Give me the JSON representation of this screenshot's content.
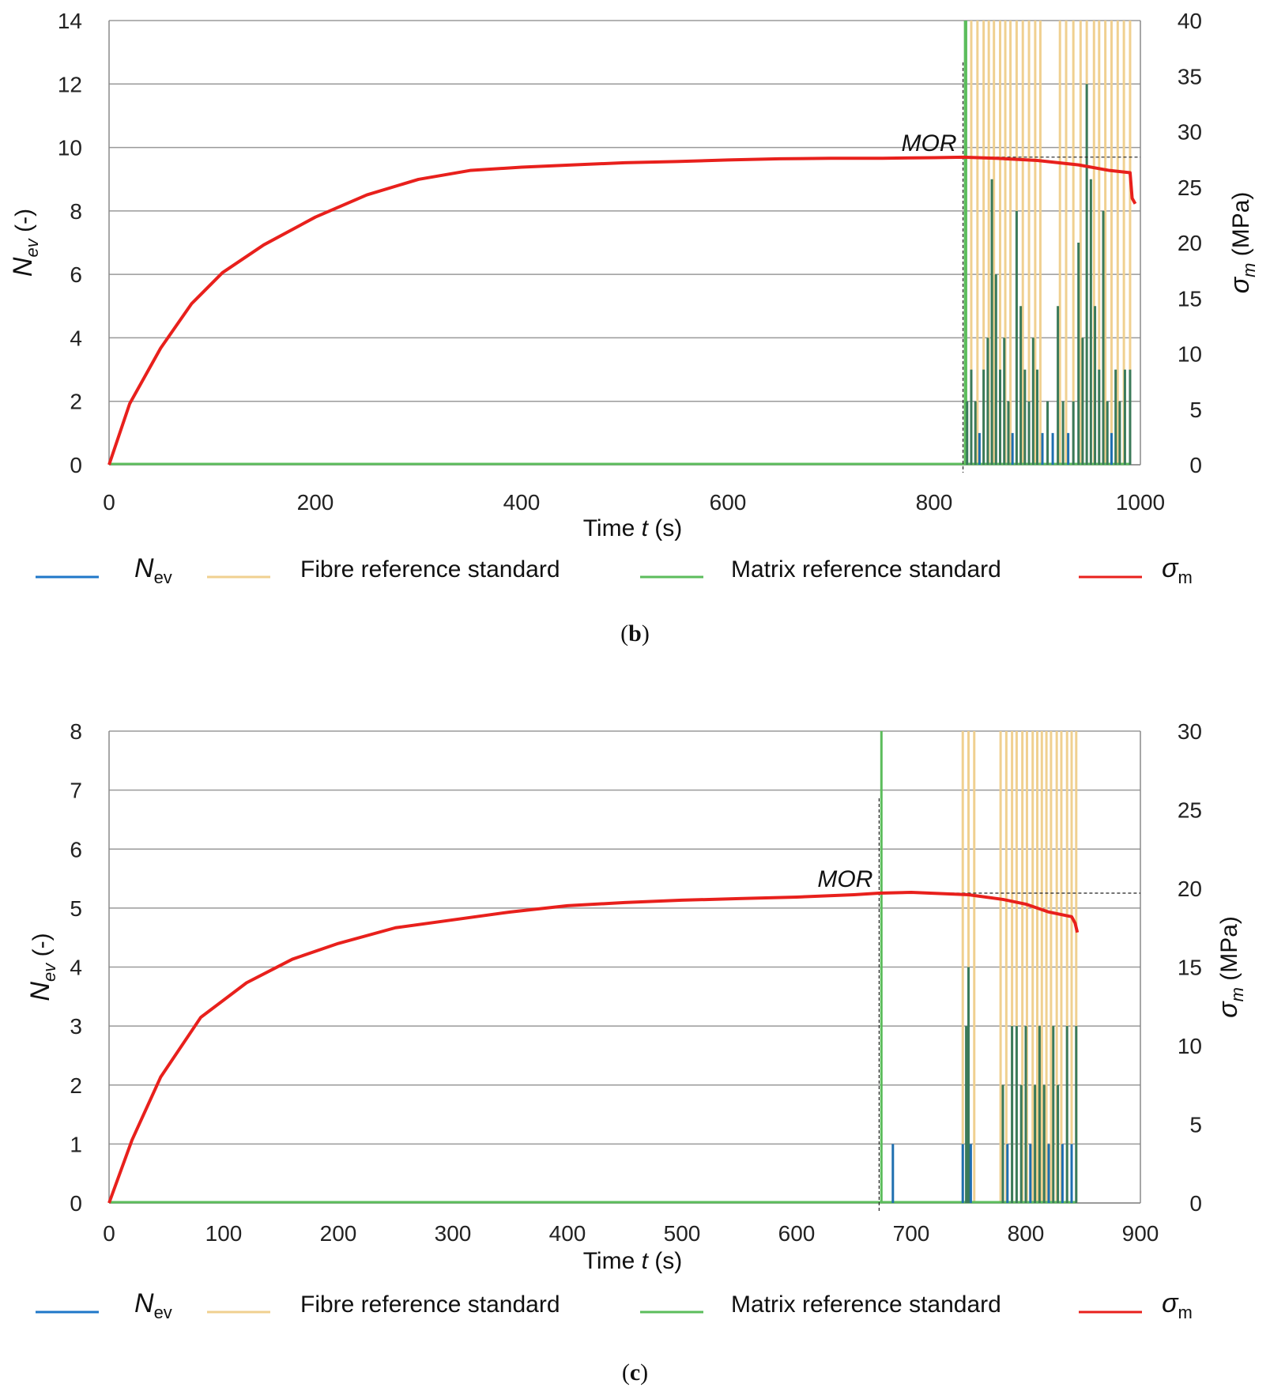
{
  "charts": [
    {
      "id": "b",
      "caption_letter": "b",
      "chart_data": {
        "type": "line",
        "xlabel_prefix": "Time ",
        "xlabel_var": "t",
        "xlabel_suffix": " (s)",
        "ylabel_var": "N",
        "ylabel_sub": "ev",
        "ylabel_suffix": " (-)",
        "y2label_var": "σ",
        "y2label_sub": "m",
        "y2label_suffix": " (MPa)",
        "xlim": [
          0,
          1000
        ],
        "ylim": [
          0,
          14
        ],
        "y2lim": [
          0,
          40
        ],
        "xticks": [
          "0",
          "200",
          "400",
          "600",
          "800",
          "1000"
        ],
        "xtick_values": [
          0,
          200,
          400,
          600,
          800,
          1000
        ],
        "yticks": [
          "0",
          "2",
          "4",
          "6",
          "8",
          "10",
          "12",
          "14"
        ],
        "ytick_values": [
          0,
          2,
          4,
          6,
          8,
          10,
          12,
          14
        ],
        "y2ticks": [
          "0",
          "5",
          "10",
          "15",
          "20",
          "25",
          "30",
          "35",
          "40"
        ],
        "y2tick_values": [
          0,
          5,
          10,
          15,
          20,
          25,
          30,
          35,
          40
        ],
        "grid": true,
        "annotation": {
          "text": "MOR",
          "x": 828,
          "y2": 27.7
        },
        "legend": [
          {
            "label_var": "N",
            "label_sub": "ev",
            "label_text": "",
            "color": "#1f77c8"
          },
          {
            "label_var": "",
            "label_sub": "",
            "label_text": "Fibre reference standard",
            "color": "#f0d090"
          },
          {
            "label_var": "",
            "label_sub": "",
            "label_text": "Matrix reference standard",
            "color": "#5cbd5c"
          },
          {
            "label_var": "σ",
            "label_sub": "m",
            "label_text": "",
            "color": "#e8201c"
          }
        ],
        "stress_curve": {
          "name": "σm",
          "axis": "y2",
          "color": "#e8201c",
          "x": [
            0,
            20,
            50,
            80,
            110,
            150,
            200,
            250,
            300,
            350,
            400,
            450,
            500,
            550,
            600,
            650,
            700,
            750,
            800,
            828,
            860,
            900,
            940,
            970,
            990,
            992,
            995
          ],
          "y": [
            0,
            5.5,
            10.5,
            14.5,
            17.3,
            19.8,
            22.3,
            24.3,
            25.7,
            26.5,
            26.8,
            27.0,
            27.2,
            27.3,
            27.45,
            27.55,
            27.6,
            27.6,
            27.65,
            27.7,
            27.6,
            27.4,
            27.0,
            26.5,
            26.3,
            24.0,
            23.5
          ]
        },
        "fibre_lines": {
          "color": "#f0d090",
          "x": [
            836,
            842,
            848,
            853,
            858,
            864,
            869,
            874,
            880,
            886,
            892,
            898,
            903,
            922,
            928,
            935,
            942,
            948,
            955,
            960,
            966,
            972,
            978,
            984,
            990
          ]
        },
        "matrix_lines": {
          "color": "#5cbd5c",
          "x": [
            830,
            831
          ]
        },
        "nev_bars": {
          "color": "#1f6fb0",
          "overlay_color": "#3a7a5a",
          "x": [
            832,
            836,
            840,
            844,
            848,
            852,
            856,
            860,
            864,
            868,
            872,
            876,
            880,
            884,
            888,
            892,
            896,
            900,
            905,
            910,
            915,
            920,
            925,
            930,
            935,
            940,
            944,
            948,
            952,
            956,
            960,
            964,
            968,
            972,
            976,
            980,
            985,
            990
          ],
          "y": [
            2,
            3,
            2,
            1,
            3,
            4,
            9,
            6,
            3,
            4,
            2,
            1,
            8,
            5,
            3,
            2,
            4,
            3,
            1,
            2,
            1,
            5,
            2,
            1,
            2,
            7,
            4,
            12,
            9,
            5,
            3,
            8,
            2,
            1,
            3,
            2,
            3,
            3
          ]
        }
      }
    },
    {
      "id": "c",
      "caption_letter": "c",
      "chart_data": {
        "type": "line",
        "xlabel_prefix": "Time ",
        "xlabel_var": "t",
        "xlabel_suffix": " (s)",
        "ylabel_var": "N",
        "ylabel_sub": "ev",
        "ylabel_suffix": " (-)",
        "y2label_var": "σ",
        "y2label_sub": "m",
        "y2label_suffix": " (MPa)",
        "xlim": [
          0,
          900
        ],
        "ylim": [
          0,
          8
        ],
        "y2lim": [
          0,
          30
        ],
        "xticks": [
          "0",
          "100",
          "200",
          "300",
          "400",
          "500",
          "600",
          "700",
          "800",
          "900"
        ],
        "xtick_values": [
          0,
          100,
          200,
          300,
          400,
          500,
          600,
          700,
          800,
          900
        ],
        "yticks": [
          "0",
          "1",
          "2",
          "3",
          "4",
          "5",
          "6",
          "7",
          "8"
        ],
        "ytick_values": [
          0,
          1,
          2,
          3,
          4,
          5,
          6,
          7,
          8
        ],
        "y2ticks": [
          "0",
          "5",
          "10",
          "15",
          "20",
          "25",
          "30"
        ],
        "y2tick_values": [
          0,
          5,
          10,
          15,
          20,
          25,
          30
        ],
        "grid": true,
        "annotation": {
          "text": "MOR",
          "x": 672,
          "y2": 19.7
        },
        "legend": [
          {
            "label_var": "N",
            "label_sub": "ev",
            "label_text": "",
            "color": "#1f77c8"
          },
          {
            "label_var": "",
            "label_sub": "",
            "label_text": "Fibre reference standard",
            "color": "#f0d090"
          },
          {
            "label_var": "",
            "label_sub": "",
            "label_text": "Matrix reference standard",
            "color": "#5cbd5c"
          },
          {
            "label_var": "σ",
            "label_sub": "m",
            "label_text": "",
            "color": "#e8201c"
          }
        ],
        "stress_curve": {
          "name": "σm",
          "axis": "y2",
          "color": "#e8201c",
          "x": [
            0,
            20,
            45,
            80,
            120,
            160,
            200,
            250,
            300,
            350,
            400,
            450,
            500,
            550,
            600,
            650,
            672,
            700,
            750,
            780,
            800,
            820,
            840,
            843,
            845
          ],
          "y": [
            0,
            4.0,
            8.0,
            11.8,
            14.0,
            15.5,
            16.5,
            17.5,
            18.0,
            18.5,
            18.9,
            19.1,
            19.25,
            19.35,
            19.45,
            19.6,
            19.7,
            19.75,
            19.6,
            19.3,
            19.0,
            18.5,
            18.2,
            17.8,
            17.2
          ]
        },
        "fibre_lines": {
          "color": "#f0d090",
          "x": [
            745,
            750,
            755,
            778,
            783,
            788,
            792,
            797,
            801,
            806,
            810,
            814,
            818,
            822,
            827,
            831,
            836,
            840,
            844
          ]
        },
        "matrix_lines": {
          "color": "#5cbd5c",
          "x": [
            674
          ]
        },
        "nev_bars": {
          "color": "#1f6fb0",
          "overlay_color": "#3a7a5a",
          "x": [
            684,
            745,
            748,
            750,
            752,
            780,
            784,
            788,
            792,
            796,
            800,
            804,
            808,
            812,
            816,
            820,
            824,
            828,
            832,
            836,
            840,
            844
          ],
          "y": [
            1,
            1,
            3,
            4,
            1,
            2,
            1,
            3,
            3,
            2,
            3,
            1,
            2,
            3,
            2,
            1,
            3,
            2,
            1,
            3,
            1,
            3
          ]
        }
      }
    }
  ]
}
